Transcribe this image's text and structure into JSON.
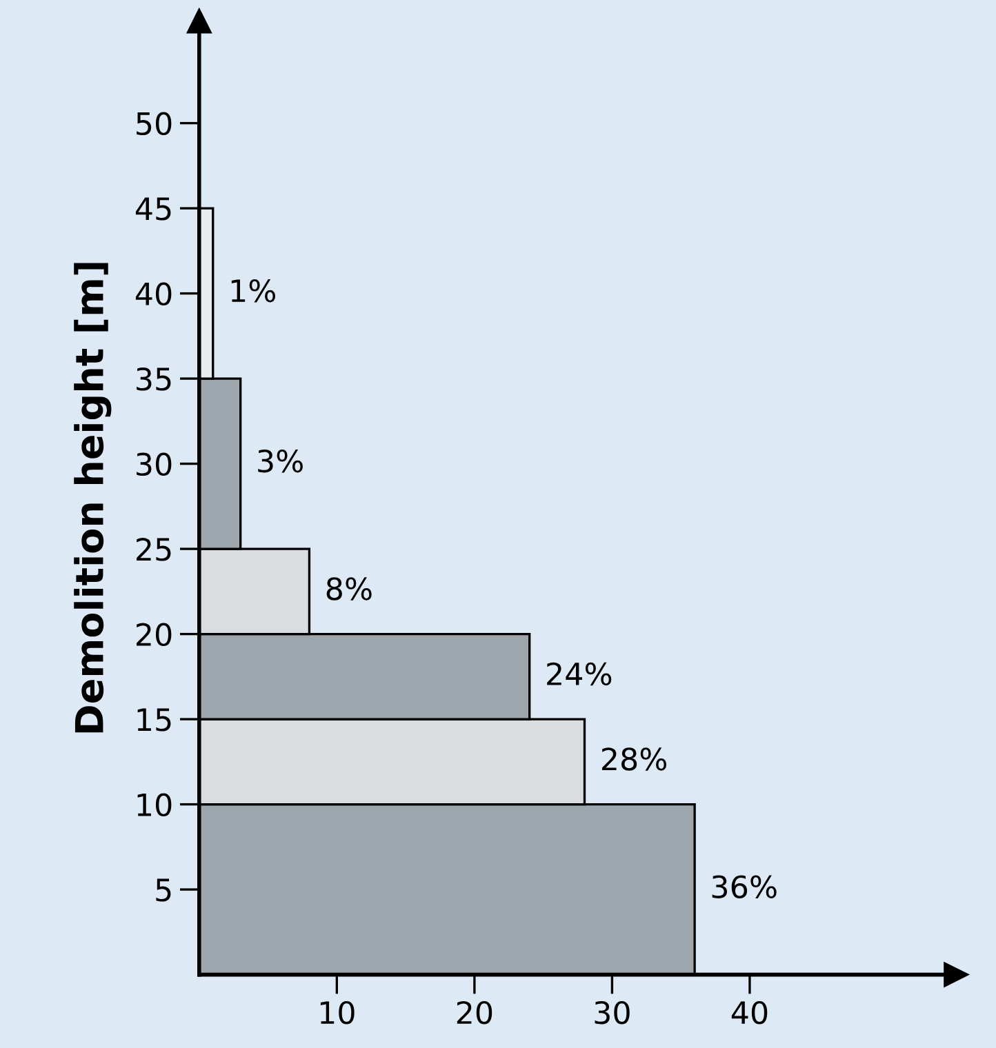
{
  "chart_data": {
    "type": "histogram",
    "orientation": "horizontal",
    "ylabel": "Demolition height [m]",
    "bins": [
      0,
      10,
      15,
      20,
      25,
      35,
      45
    ],
    "values": [
      36,
      28,
      24,
      8,
      3,
      1
    ],
    "value_labels": [
      "36%",
      "28%",
      "24%",
      "8%",
      "3%",
      "1%"
    ],
    "colors": [
      "#9ea6ad",
      "#d9dde0",
      "#9ea6ad",
      "#d9dde0",
      "#9ea6ad",
      "#e6ecf0"
    ],
    "xlim": [
      0,
      55
    ],
    "ylim": [
      0,
      56
    ],
    "xticks": [
      10,
      20,
      30,
      40
    ],
    "yticks": [
      5,
      10,
      15,
      20,
      25,
      30,
      35,
      40,
      45,
      50
    ],
    "grid": false
  }
}
